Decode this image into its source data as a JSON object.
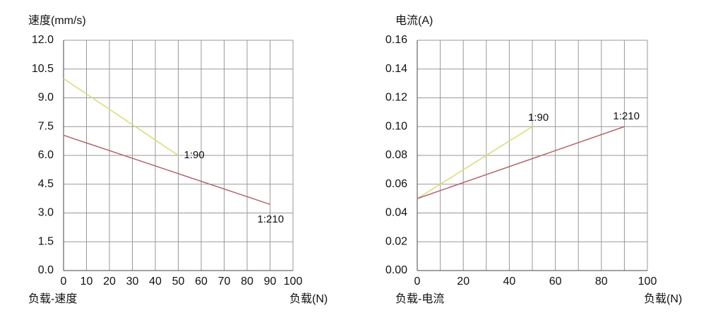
{
  "chart_data": [
    {
      "type": "line",
      "ylabel": "速度(mm/s)",
      "xlabel": "负载(N)",
      "caption": "负载-速度",
      "ylim": [
        0,
        12
      ],
      "yticks": [
        {
          "value": 0,
          "label": "0.0"
        },
        1.5,
        {
          "value": 3,
          "label": "3.0"
        },
        4.5,
        {
          "value": 6,
          "label": "6.0"
        },
        7.5,
        {
          "value": 9,
          "label": "9.0"
        },
        10.5,
        {
          "value": 12,
          "label": "12.0"
        }
      ],
      "xlim": [
        0,
        100
      ],
      "xticks": [
        0,
        10,
        20,
        30,
        40,
        50,
        60,
        70,
        80,
        90,
        100
      ],
      "grid": true,
      "minor_grid": false,
      "series": [
        {
          "name": "1:90",
          "color": "#d8dc74",
          "x": [
            0,
            50
          ],
          "values": [
            10,
            6
          ]
        },
        {
          "name": "1:210",
          "color": "#b5636a",
          "x": [
            0,
            90
          ],
          "values": [
            7.05,
            3.45
          ]
        }
      ]
    },
    {
      "type": "line",
      "ylabel": "电流(A)",
      "xlabel": "负载(N)",
      "caption": "负载-电流",
      "ylim": [
        0,
        0.16
      ],
      "yticks": [
        {
          "value": 0,
          "label": "0.00"
        },
        0.02,
        0.04,
        0.06,
        0.08,
        {
          "value": 0.1,
          "label": "0.10"
        },
        0.12,
        0.14,
        0.16
      ],
      "xlim": [
        0,
        100
      ],
      "xticks": [
        0,
        20,
        40,
        60,
        80,
        100
      ],
      "grid": true,
      "minor_grid": true,
      "series": [
        {
          "name": "1:90",
          "color": "#d8dc74",
          "x": [
            0,
            50
          ],
          "values": [
            0.05,
            0.1
          ]
        },
        {
          "name": "1:210",
          "color": "#b5636a",
          "x": [
            0,
            90
          ],
          "values": [
            0.05,
            0.1
          ]
        }
      ]
    }
  ]
}
